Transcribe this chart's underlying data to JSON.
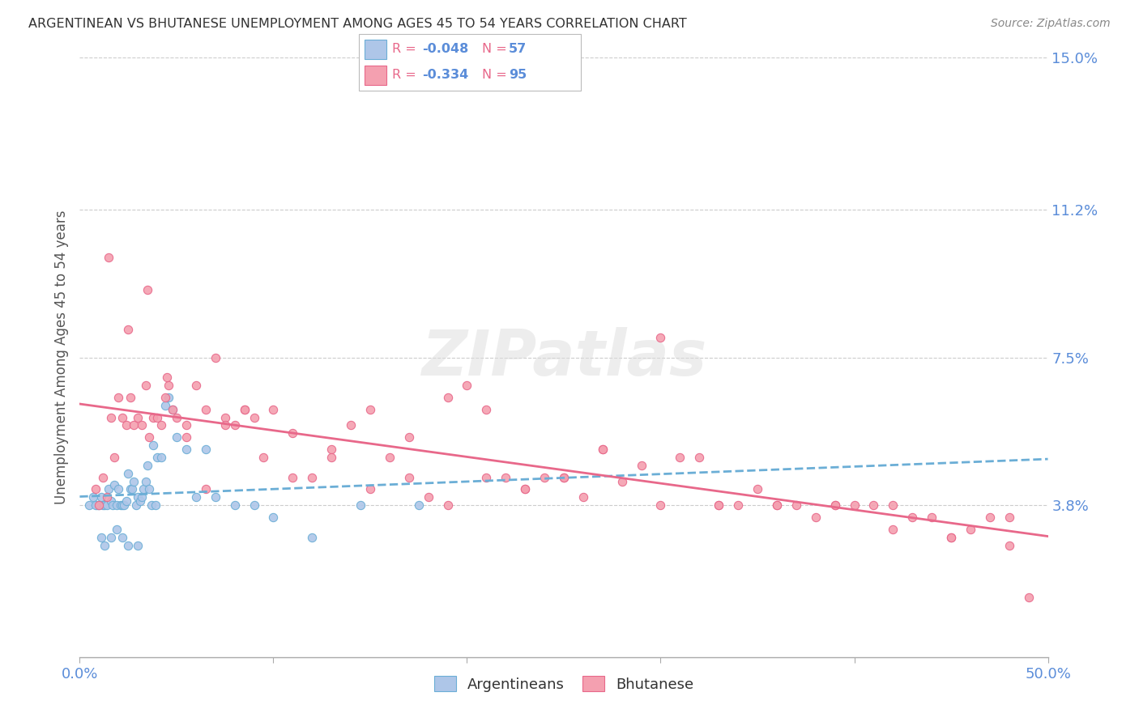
{
  "title": "ARGENTINEAN VS BHUTANESE UNEMPLOYMENT AMONG AGES 45 TO 54 YEARS CORRELATION CHART",
  "source": "Source: ZipAtlas.com",
  "ylabel": "Unemployment Among Ages 45 to 54 years",
  "xlim": [
    0.0,
    0.5
  ],
  "ylim": [
    0.0,
    0.15
  ],
  "yticks": [
    0.038,
    0.075,
    0.112,
    0.15
  ],
  "ytick_labels": [
    "3.8%",
    "7.5%",
    "11.2%",
    "15.0%"
  ],
  "xticks": [
    0.0,
    0.1,
    0.2,
    0.3,
    0.4,
    0.5
  ],
  "xtick_labels": [
    "0.0%",
    "",
    "",
    "",
    "",
    "50.0%"
  ],
  "argentina_color": "#aec6e8",
  "bhutan_color": "#f4a0b0",
  "argentina_edge_color": "#6baed6",
  "bhutan_edge_color": "#e8688a",
  "argentina_line_color": "#6baed6",
  "bhutan_line_color": "#e8688a",
  "background_color": "#ffffff",
  "grid_color": "#cccccc",
  "argentina_R": -0.048,
  "argentina_N": 57,
  "bhutan_R": -0.334,
  "bhutan_N": 95,
  "arg_x": [
    0.005,
    0.007,
    0.009,
    0.01,
    0.011,
    0.012,
    0.013,
    0.014,
    0.015,
    0.016,
    0.017,
    0.018,
    0.019,
    0.02,
    0.021,
    0.022,
    0.023,
    0.024,
    0.025,
    0.026,
    0.027,
    0.028,
    0.029,
    0.03,
    0.031,
    0.032,
    0.033,
    0.034,
    0.035,
    0.036,
    0.037,
    0.038,
    0.039,
    0.04,
    0.042,
    0.044,
    0.046,
    0.048,
    0.05,
    0.055,
    0.06,
    0.065,
    0.07,
    0.08,
    0.09,
    0.1,
    0.12,
    0.145,
    0.175,
    0.008,
    0.011,
    0.013,
    0.016,
    0.019,
    0.022,
    0.025,
    0.03
  ],
  "arg_y": [
    0.038,
    0.04,
    0.038,
    0.038,
    0.04,
    0.038,
    0.038,
    0.038,
    0.042,
    0.039,
    0.038,
    0.043,
    0.038,
    0.042,
    0.038,
    0.038,
    0.038,
    0.039,
    0.046,
    0.042,
    0.042,
    0.044,
    0.038,
    0.04,
    0.039,
    0.04,
    0.042,
    0.044,
    0.048,
    0.042,
    0.038,
    0.053,
    0.038,
    0.05,
    0.05,
    0.063,
    0.065,
    0.062,
    0.055,
    0.052,
    0.04,
    0.052,
    0.04,
    0.038,
    0.038,
    0.035,
    0.03,
    0.038,
    0.038,
    0.038,
    0.03,
    0.028,
    0.03,
    0.032,
    0.03,
    0.028,
    0.028
  ],
  "bhu_x": [
    0.008,
    0.01,
    0.012,
    0.014,
    0.016,
    0.018,
    0.02,
    0.022,
    0.024,
    0.026,
    0.028,
    0.03,
    0.032,
    0.034,
    0.036,
    0.038,
    0.04,
    0.042,
    0.044,
    0.046,
    0.048,
    0.05,
    0.055,
    0.06,
    0.065,
    0.07,
    0.075,
    0.08,
    0.085,
    0.09,
    0.1,
    0.11,
    0.12,
    0.13,
    0.14,
    0.15,
    0.16,
    0.17,
    0.18,
    0.19,
    0.2,
    0.21,
    0.22,
    0.23,
    0.24,
    0.25,
    0.26,
    0.27,
    0.28,
    0.29,
    0.3,
    0.31,
    0.32,
    0.33,
    0.34,
    0.35,
    0.36,
    0.37,
    0.38,
    0.39,
    0.4,
    0.41,
    0.42,
    0.43,
    0.44,
    0.45,
    0.46,
    0.47,
    0.48,
    0.49,
    0.015,
    0.025,
    0.035,
    0.045,
    0.055,
    0.065,
    0.075,
    0.085,
    0.095,
    0.11,
    0.13,
    0.15,
    0.17,
    0.19,
    0.21,
    0.23,
    0.25,
    0.27,
    0.3,
    0.33,
    0.36,
    0.39,
    0.42,
    0.45,
    0.48
  ],
  "bhu_y": [
    0.042,
    0.038,
    0.045,
    0.04,
    0.06,
    0.05,
    0.065,
    0.06,
    0.058,
    0.065,
    0.058,
    0.06,
    0.058,
    0.068,
    0.055,
    0.06,
    0.06,
    0.058,
    0.065,
    0.068,
    0.062,
    0.06,
    0.055,
    0.068,
    0.062,
    0.075,
    0.06,
    0.058,
    0.062,
    0.06,
    0.062,
    0.056,
    0.045,
    0.052,
    0.058,
    0.062,
    0.05,
    0.055,
    0.04,
    0.065,
    0.068,
    0.062,
    0.045,
    0.042,
    0.045,
    0.045,
    0.04,
    0.052,
    0.044,
    0.048,
    0.08,
    0.05,
    0.05,
    0.038,
    0.038,
    0.042,
    0.038,
    0.038,
    0.035,
    0.038,
    0.038,
    0.038,
    0.038,
    0.035,
    0.035,
    0.03,
    0.032,
    0.035,
    0.035,
    0.015,
    0.1,
    0.082,
    0.092,
    0.07,
    0.058,
    0.042,
    0.058,
    0.062,
    0.05,
    0.045,
    0.05,
    0.042,
    0.045,
    0.038,
    0.045,
    0.042,
    0.045,
    0.052,
    0.038,
    0.038,
    0.038,
    0.038,
    0.032,
    0.03,
    0.028
  ]
}
